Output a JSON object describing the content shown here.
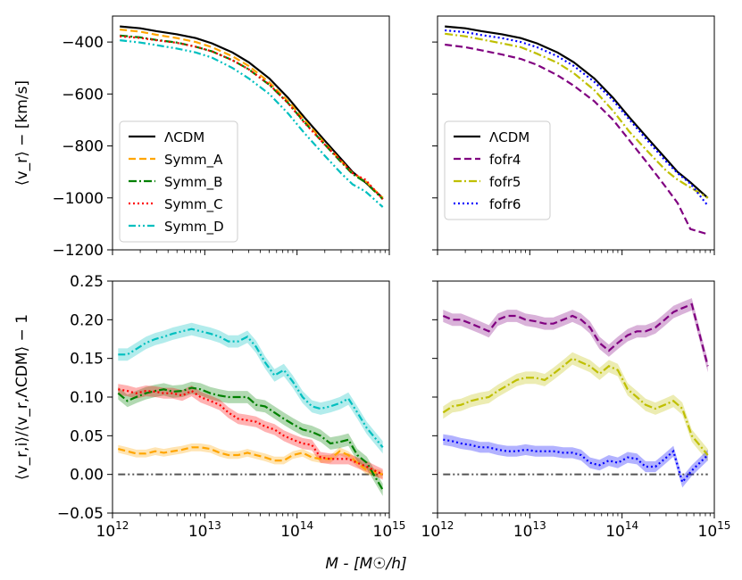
{
  "chart_data": [
    {
      "type": "line",
      "panel": "top-left",
      "title": "",
      "xlabel": "",
      "ylabel": "⟨v_r⟩ − [km/s]",
      "xscale": "log",
      "xlim": [
        1000000000000.0,
        1000000000000000.0
      ],
      "ylim": [
        -1200,
        -300
      ],
      "yticks": [
        -400,
        -600,
        -800,
        -1000,
        -1200
      ],
      "legend_loc": "center-left",
      "x": [
        1200000000000.0,
        2000000000000.0,
        3000000000000.0,
        5000000000000.0,
        8000000000000.0,
        12000000000000.0,
        20000000000000.0,
        30000000000000.0,
        50000000000000.0,
        80000000000000.0,
        120000000000000.0,
        200000000000000.0,
        300000000000000.0,
        400000000000000.0,
        550000000000000.0,
        850000000000000.0
      ],
      "series": [
        {
          "name": "ΛCDM",
          "color": "#000000",
          "dash": "solid",
          "width": 2.2,
          "values": [
            -340,
            -347,
            -358,
            -370,
            -385,
            -405,
            -440,
            -478,
            -540,
            -615,
            -690,
            -780,
            -850,
            -900,
            -940,
            -1000
          ]
        },
        {
          "name": "Symm_A",
          "color": "#ffa500",
          "dash": "dashed",
          "width": 2.2,
          "values": [
            -352,
            -360,
            -372,
            -385,
            -400,
            -420,
            -455,
            -492,
            -555,
            -628,
            -700,
            -790,
            -858,
            -905,
            -935,
            -1000
          ]
        },
        {
          "name": "Symm_B",
          "color": "#008000",
          "dash": "dashdot",
          "width": 2.2,
          "values": [
            -375,
            -382,
            -392,
            -402,
            -418,
            -436,
            -470,
            -505,
            -565,
            -635,
            -708,
            -795,
            -862,
            -908,
            -940,
            -1005
          ]
        },
        {
          "name": "Symm_C",
          "color": "#ff0000",
          "dash": "dotted",
          "width": 2.2,
          "values": [
            -378,
            -384,
            -393,
            -403,
            -418,
            -436,
            -470,
            -505,
            -563,
            -636,
            -710,
            -795,
            -858,
            -905,
            -930,
            -1005
          ]
        },
        {
          "name": "Symm_D",
          "color": "#00bfbf",
          "dash": "dashdotdot",
          "width": 2.2,
          "values": [
            -393,
            -402,
            -412,
            -425,
            -440,
            -460,
            -500,
            -540,
            -600,
            -675,
            -750,
            -838,
            -905,
            -948,
            -975,
            -1035
          ]
        }
      ]
    },
    {
      "type": "line",
      "panel": "top-right",
      "title": "",
      "xlabel": "",
      "ylabel": "",
      "xscale": "log",
      "xlim": [
        1000000000000.0,
        1000000000000000.0
      ],
      "ylim": [
        -1200,
        -300
      ],
      "legend_loc": "center-left",
      "x": [
        1200000000000.0,
        2000000000000.0,
        3000000000000.0,
        5000000000000.0,
        8000000000000.0,
        12000000000000.0,
        20000000000000.0,
        30000000000000.0,
        50000000000000.0,
        80000000000000.0,
        120000000000000.0,
        200000000000000.0,
        300000000000000.0,
        400000000000000.0,
        550000000000000.0,
        850000000000000.0
      ],
      "series": [
        {
          "name": "ΛCDM",
          "color": "#000000",
          "dash": "solid",
          "width": 2.2,
          "values": [
            -340,
            -347,
            -358,
            -370,
            -385,
            -405,
            -440,
            -478,
            -540,
            -615,
            -690,
            -780,
            -850,
            -900,
            -940,
            -1000
          ]
        },
        {
          "name": "fofr4",
          "color": "#800080",
          "dash": "dashed",
          "width": 2.2,
          "values": [
            -410,
            -420,
            -432,
            -448,
            -465,
            -488,
            -528,
            -568,
            -628,
            -700,
            -778,
            -878,
            -960,
            -1020,
            -1120,
            -1140
          ]
        },
        {
          "name": "fofr5",
          "color": "#bfbf00",
          "dash": "dashdot",
          "width": 2.2,
          "values": [
            -368,
            -378,
            -390,
            -405,
            -420,
            -445,
            -480,
            -520,
            -585,
            -665,
            -745,
            -830,
            -895,
            -930,
            -960,
            -1000
          ]
        },
        {
          "name": "fofr6",
          "color": "#0000ff",
          "dash": "dotted",
          "width": 2.2,
          "values": [
            -355,
            -362,
            -373,
            -385,
            -400,
            -420,
            -455,
            -492,
            -553,
            -625,
            -698,
            -790,
            -860,
            -905,
            -945,
            -1030
          ]
        }
      ]
    },
    {
      "type": "line",
      "panel": "bottom-left",
      "title": "",
      "xlabel": "",
      "ylabel": "⟨v_r,i⟩/⟨v_r,ΛCDM⟩ − 1",
      "xscale": "log",
      "xlim": [
        1000000000000.0,
        1000000000000000.0
      ],
      "ylim": [
        -0.05,
        0.25
      ],
      "yticks": [
        -0.05,
        0.0,
        0.05,
        0.1,
        0.15,
        0.2,
        0.25
      ],
      "x": [
        1150000000000.0,
        1450000000000.0,
        1800000000000.0,
        2300000000000.0,
        2900000000000.0,
        3600000000000.0,
        4500000000000.0,
        5700000000000.0,
        7200000000000.0,
        9000000000000.0,
        11500000000000.0,
        14500000000000.0,
        18000000000000.0,
        23000000000000.0,
        29000000000000.0,
        36000000000000.0,
        45000000000000.0,
        57000000000000.0,
        72000000000000.0,
        90000000000000.0,
        115000000000000.0,
        145000000000000.0,
        180000000000000.0,
        230000000000000.0,
        290000000000000.0,
        360000000000000.0,
        450000000000000.0,
        570000000000000.0,
        850000000000000.0
      ],
      "series": [
        {
          "name": "Symm_A",
          "color": "#ffa500",
          "dash": "dashed",
          "band": 0.005,
          "values": [
            0.033,
            0.03,
            0.027,
            0.027,
            0.03,
            0.028,
            0.03,
            0.032,
            0.035,
            0.035,
            0.033,
            0.028,
            0.025,
            0.025,
            0.028,
            0.025,
            0.022,
            0.018,
            0.018,
            0.025,
            0.028,
            0.022,
            0.02,
            0.02,
            0.03,
            0.025,
            0.015,
            0.005,
            0.0
          ]
        },
        {
          "name": "Symm_B",
          "color": "#008000",
          "dash": "dashdot",
          "band": 0.008,
          "values": [
            0.105,
            0.095,
            0.1,
            0.105,
            0.108,
            0.11,
            0.107,
            0.108,
            0.112,
            0.11,
            0.105,
            0.102,
            0.1,
            0.1,
            0.1,
            0.09,
            0.088,
            0.08,
            0.072,
            0.065,
            0.058,
            0.055,
            0.05,
            0.04,
            0.042,
            0.045,
            0.025,
            0.015,
            -0.02
          ]
        },
        {
          "name": "Symm_C",
          "color": "#ff0000",
          "dash": "dotted",
          "band": 0.007,
          "values": [
            0.11,
            0.108,
            0.105,
            0.108,
            0.107,
            0.105,
            0.105,
            0.102,
            0.108,
            0.1,
            0.095,
            0.09,
            0.08,
            0.072,
            0.07,
            0.068,
            0.062,
            0.058,
            0.05,
            0.045,
            0.04,
            0.038,
            0.022,
            0.02,
            0.02,
            0.02,
            0.015,
            0.01,
            0.0
          ]
        },
        {
          "name": "Symm_D",
          "color": "#00bfbf",
          "dash": "dashdotdot",
          "band": 0.008,
          "values": [
            0.155,
            0.155,
            0.162,
            0.17,
            0.175,
            0.178,
            0.182,
            0.185,
            0.188,
            0.185,
            0.182,
            0.178,
            0.172,
            0.172,
            0.178,
            0.165,
            0.145,
            0.128,
            0.135,
            0.12,
            0.1,
            0.088,
            0.085,
            0.088,
            0.092,
            0.098,
            0.08,
            0.06,
            0.035
          ]
        }
      ],
      "reference_line": {
        "y": 0.0,
        "color": "#555555",
        "dash": "dashdotdot"
      }
    },
    {
      "type": "line",
      "panel": "bottom-right",
      "title": "",
      "xlabel": "",
      "ylabel": "",
      "xscale": "log",
      "xlim": [
        1000000000000.0,
        1000000000000000.0
      ],
      "ylim": [
        -0.05,
        0.25
      ],
      "x": [
        1150000000000.0,
        1450000000000.0,
        1800000000000.0,
        2300000000000.0,
        2900000000000.0,
        3600000000000.0,
        4500000000000.0,
        5700000000000.0,
        7200000000000.0,
        9000000000000.0,
        11500000000000.0,
        14500000000000.0,
        18000000000000.0,
        23000000000000.0,
        29000000000000.0,
        36000000000000.0,
        45000000000000.0,
        57000000000000.0,
        72000000000000.0,
        90000000000000.0,
        115000000000000.0,
        145000000000000.0,
        180000000000000.0,
        230000000000000.0,
        290000000000000.0,
        360000000000000.0,
        450000000000000.0,
        570000000000000.0,
        850000000000000.0
      ],
      "series": [
        {
          "name": "fofr4",
          "color": "#800080",
          "dash": "dashed",
          "band": 0.008,
          "values": [
            0.205,
            0.2,
            0.2,
            0.195,
            0.19,
            0.185,
            0.2,
            0.205,
            0.205,
            0.2,
            0.198,
            0.195,
            0.195,
            0.2,
            0.205,
            0.2,
            0.19,
            0.17,
            0.16,
            0.17,
            0.18,
            0.185,
            0.185,
            0.19,
            0.2,
            0.21,
            0.215,
            0.22,
            0.14
          ]
        },
        {
          "name": "fofr5",
          "color": "#bfbf00",
          "dash": "dashdot",
          "band": 0.008,
          "values": [
            0.08,
            0.088,
            0.09,
            0.095,
            0.098,
            0.1,
            0.108,
            0.115,
            0.122,
            0.125,
            0.125,
            0.122,
            0.13,
            0.14,
            0.15,
            0.145,
            0.14,
            0.13,
            0.14,
            0.135,
            0.11,
            0.1,
            0.09,
            0.085,
            0.09,
            0.095,
            0.085,
            0.05,
            0.025
          ]
        },
        {
          "name": "fofr6",
          "color": "#0000ff",
          "dash": "dotted",
          "band": 0.007,
          "values": [
            0.045,
            0.043,
            0.04,
            0.038,
            0.035,
            0.035,
            0.032,
            0.03,
            0.03,
            0.032,
            0.03,
            0.03,
            0.03,
            0.028,
            0.028,
            0.025,
            0.015,
            0.012,
            0.018,
            0.015,
            0.022,
            0.02,
            0.01,
            0.01,
            0.02,
            0.03,
            -0.01,
            0.005,
            0.025
          ]
        }
      ],
      "reference_line": {
        "y": 0.0,
        "color": "#555555",
        "dash": "dashdotdot"
      }
    }
  ],
  "x_axis": {
    "label": "M - [M☉/h]",
    "ticks": [
      {
        "base": "10",
        "exp": "12"
      },
      {
        "base": "10",
        "exp": "13"
      },
      {
        "base": "10",
        "exp": "14"
      },
      {
        "base": "10",
        "exp": "15"
      }
    ]
  },
  "labels": {
    "top_ylabel": "⟨v_r⟩ − [km/s]",
    "bottom_ylabel": "⟨v_r,i⟩/⟨v_r,ΛCDM⟩ − 1",
    "xlabel": "M - [M☉/h]"
  }
}
